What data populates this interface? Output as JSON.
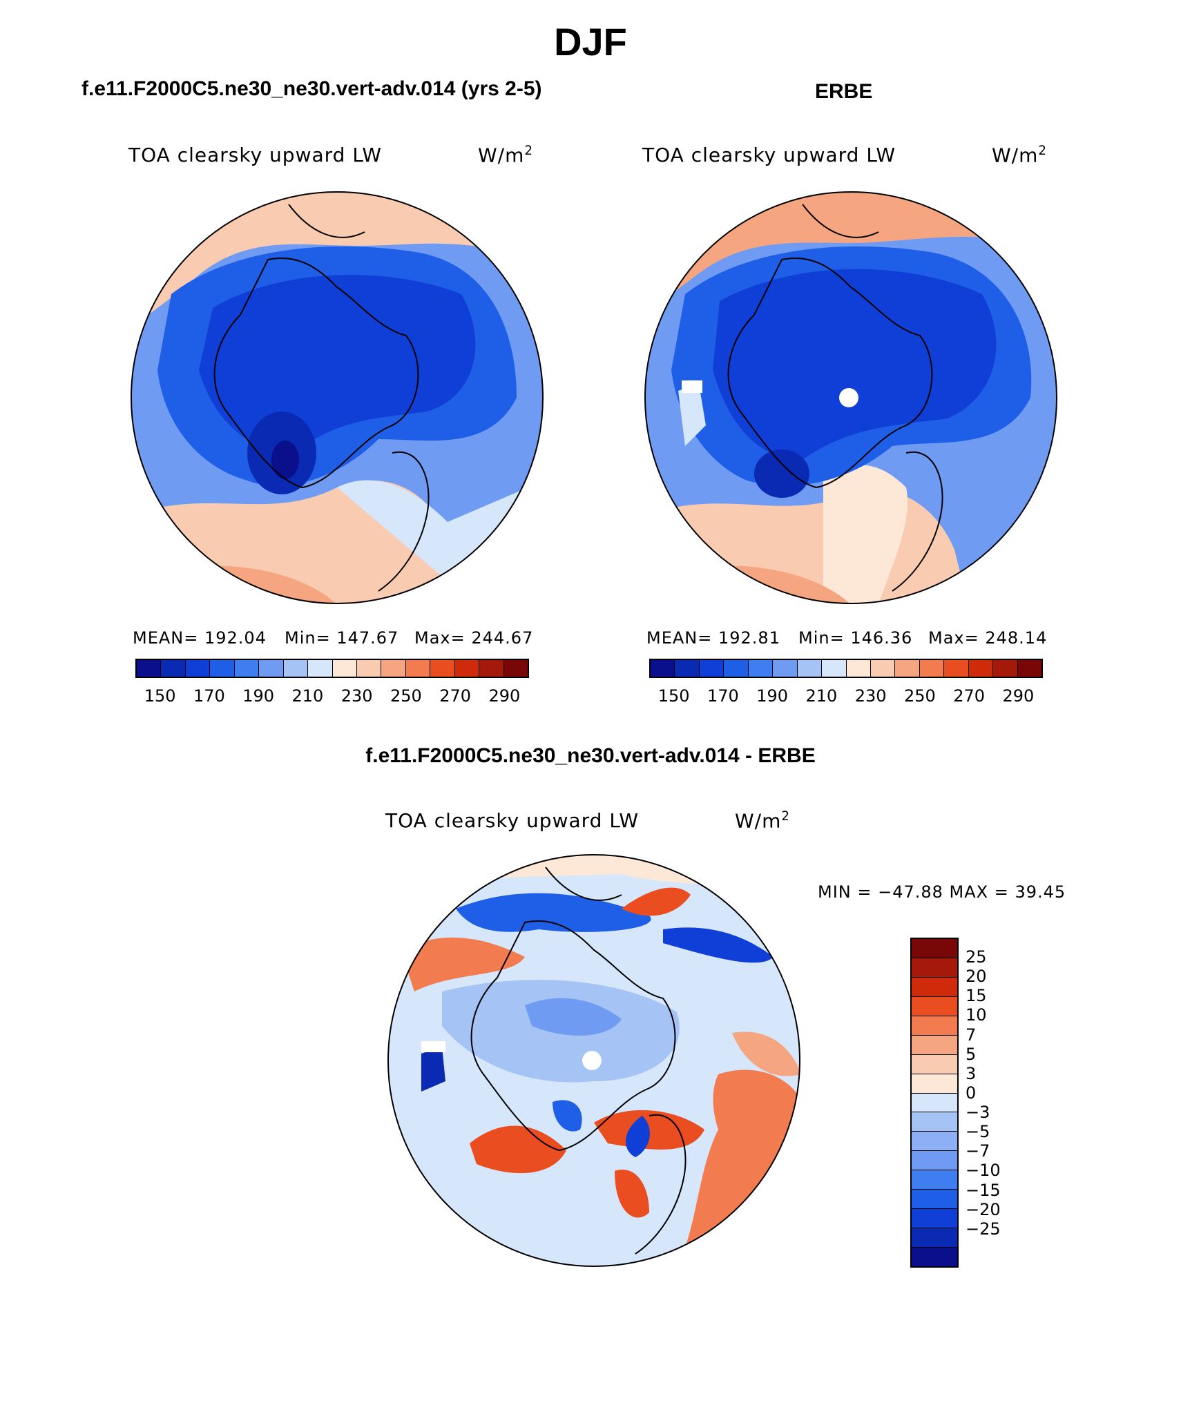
{
  "title": "DJF",
  "panels": {
    "model": {
      "title": "f.e11.F2000C5.ne30_ne30.vert-adv.014 (yrs 2-5)",
      "variable": "TOA clearsky upward LW",
      "units_base": "W/m",
      "units_exp": "2",
      "stats": {
        "mean": "MEAN= 192.04",
        "min": "Min= 147.67",
        "max": "Max= 244.67"
      }
    },
    "obs": {
      "title": "ERBE",
      "variable": "TOA clearsky upward LW",
      "units_base": "W/m",
      "units_exp": "2",
      "stats": {
        "mean": "MEAN= 192.81",
        "min": "Min= 146.36",
        "max": "Max= 248.14"
      }
    },
    "diff": {
      "title": "f.e11.F2000C5.ne30_ne30.vert-adv.014 - ERBE",
      "variable": "TOA clearsky upward LW",
      "units_base": "W/m",
      "units_exp": "2",
      "minmax": "MIN = −47.88 MAX =  39.45"
    }
  },
  "chart_data": [
    {
      "type": "heatmap",
      "projection": "north polar stereographic",
      "title": "f.e11.F2000C5.ne30_ne30.vert-adv.014 (yrs 2-5)",
      "variable": "TOA clearsky upward LW",
      "units": "W/m2",
      "mean": 192.04,
      "min": 147.67,
      "max": 244.67,
      "colorbar_ticks": [
        "150",
        "170",
        "190",
        "210",
        "230",
        "250",
        "270",
        "290"
      ],
      "colorbar_colors": [
        "#0a0f8c",
        "#0b2ab4",
        "#0f3fd6",
        "#1f5fe8",
        "#3f7ef0",
        "#6f9cf2",
        "#a6c3f5",
        "#d6e6fb",
        "#fde8d8",
        "#f9cbb0",
        "#f5a680",
        "#f27b4f",
        "#ea4d1f",
        "#cf2a0a",
        "#a5190a",
        "#7a0707"
      ]
    },
    {
      "type": "heatmap",
      "projection": "north polar stereographic",
      "title": "ERBE",
      "variable": "TOA clearsky upward LW",
      "units": "W/m2",
      "mean": 192.81,
      "min": 146.36,
      "max": 248.14,
      "colorbar_ticks": [
        "150",
        "170",
        "190",
        "210",
        "230",
        "250",
        "270",
        "290"
      ],
      "colorbar_colors": [
        "#0a0f8c",
        "#0b2ab4",
        "#0f3fd6",
        "#1f5fe8",
        "#3f7ef0",
        "#6f9cf2",
        "#a6c3f5",
        "#d6e6fb",
        "#fde8d8",
        "#f9cbb0",
        "#f5a680",
        "#f27b4f",
        "#ea4d1f",
        "#cf2a0a",
        "#a5190a",
        "#7a0707"
      ]
    },
    {
      "type": "heatmap",
      "projection": "north polar stereographic",
      "title": "f.e11.F2000C5.ne30_ne30.vert-adv.014 - ERBE",
      "variable": "TOA clearsky upward LW",
      "units": "W/m2",
      "min": -47.88,
      "max": 39.45,
      "colorbar_ticks": [
        "25",
        "20",
        "15",
        "10",
        "7",
        "5",
        "3",
        "0",
        "−3",
        "−5",
        "−7",
        "−10",
        "−15",
        "−20",
        "−25"
      ],
      "colorbar_colors": [
        "#7a0707",
        "#a5190a",
        "#cf2a0a",
        "#ea4d1f",
        "#f27b4f",
        "#f5a680",
        "#f9cbb0",
        "#fde8d8",
        "#d6e6fb",
        "#a6c3f5",
        "#8cb0f3",
        "#6f9cf2",
        "#3f7ef0",
        "#1f5fe8",
        "#0f3fd6",
        "#0b2ab4",
        "#0a0f8c"
      ]
    }
  ]
}
